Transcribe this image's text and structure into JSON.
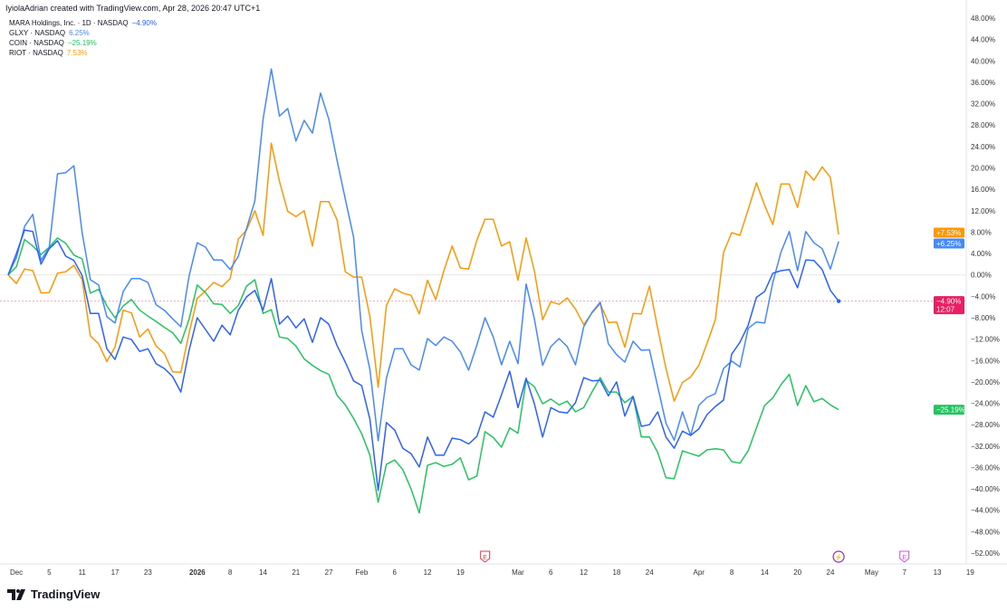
{
  "header": {
    "credit": "IyiolaAdrian created with TradingView.com, Apr 28, 2026 20:47 UTC+1"
  },
  "legend": [
    {
      "label": "MARA Holdings, Inc. · 1D · NASDAQ",
      "value": "−4.90%",
      "color": "#2962ff"
    },
    {
      "label": "GLXY · NASDAQ",
      "value": "6.25%",
      "color": "#448aff"
    },
    {
      "label": "COIN · NASDAQ",
      "value": "−25.19%",
      "color": "#22c55e"
    },
    {
      "label": "RIOT · NASDAQ",
      "value": "7.53%",
      "color": "#ff9800"
    }
  ],
  "price_badges": [
    {
      "series": "RIOT",
      "text": "+7.53%",
      "color": "#ff9800"
    },
    {
      "series": "GLXY",
      "text": "+6.25%",
      "color": "#448aff"
    },
    {
      "series": "MARA",
      "text": "−4.90%",
      "subtext": "12:07",
      "color": "#e91e63"
    },
    {
      "series": "COIN",
      "text": "−25.19%",
      "color": "#22c55e"
    }
  ],
  "events": [
    {
      "date": "2026-02-24",
      "icon": "earnings-icon",
      "label": "E",
      "color": "#f23645"
    },
    {
      "date": "2026-04-27",
      "icon": "lightning-icon",
      "label": "⚡",
      "color": "#9c27b0"
    },
    {
      "date": "2026-05-07",
      "icon": "earnings-icon",
      "label": "E",
      "color": "#e040fb"
    }
  ],
  "branding": {
    "logo_text": "TradingView"
  },
  "chart_data": {
    "type": "line",
    "title": "",
    "xlabel": "",
    "ylabel": "",
    "ylim": [
      -52,
      48
    ],
    "y_ticks": [
      "48.00%",
      "44.00%",
      "40.00%",
      "36.00%",
      "32.00%",
      "28.00%",
      "24.00%",
      "20.00%",
      "16.00%",
      "12.00%",
      "8.00%",
      "4.00%",
      "0.00%",
      "−4.00%",
      "−8.00%",
      "−12.00%",
      "−16.00%",
      "−20.00%",
      "−24.00%",
      "−28.00%",
      "−32.00%",
      "−36.00%",
      "−40.00%",
      "−44.00%",
      "−48.00%",
      "−52.00%"
    ],
    "y_tick_values": [
      48,
      44,
      40,
      36,
      32,
      28,
      24,
      20,
      16,
      12,
      8,
      4,
      0,
      -4,
      -8,
      -12,
      -16,
      -20,
      -24,
      -28,
      -32,
      -36,
      -40,
      -44,
      -48,
      -52
    ],
    "x_ticks": [
      {
        "date": "2025-12-01",
        "label": "Dec"
      },
      {
        "date": "2025-12-05",
        "label": "5"
      },
      {
        "date": "2025-12-11",
        "label": "11"
      },
      {
        "date": "2025-12-17",
        "label": "17"
      },
      {
        "date": "2025-12-23",
        "label": "23"
      },
      {
        "date": "2026-01-02",
        "label": "2026",
        "bold": true
      },
      {
        "date": "2026-01-08",
        "label": "8"
      },
      {
        "date": "2026-01-14",
        "label": "14"
      },
      {
        "date": "2026-01-21",
        "label": "21"
      },
      {
        "date": "2026-01-27",
        "label": "27"
      },
      {
        "date": "2026-02-02",
        "label": "Feb"
      },
      {
        "date": "2026-02-06",
        "label": "6"
      },
      {
        "date": "2026-02-12",
        "label": "12"
      },
      {
        "date": "2026-02-19",
        "label": "19"
      },
      {
        "date": "2026-03-02",
        "label": "Mar"
      },
      {
        "date": "2026-03-06",
        "label": "6"
      },
      {
        "date": "2026-03-12",
        "label": "12"
      },
      {
        "date": "2026-03-18",
        "label": "18"
      },
      {
        "date": "2026-03-24",
        "label": "24"
      },
      {
        "date": "2026-04-01",
        "label": "Apr"
      },
      {
        "date": "2026-04-08",
        "label": "8"
      },
      {
        "date": "2026-04-14",
        "label": "14"
      },
      {
        "date": "2026-04-20",
        "label": "20"
      },
      {
        "date": "2026-04-24",
        "label": "24"
      },
      {
        "date": "2026-05-01",
        "label": "May"
      },
      {
        "date": "2026-05-07",
        "label": "7"
      },
      {
        "date": "2026-05-13",
        "label": "13"
      },
      {
        "date": "2026-05-19",
        "label": "19"
      }
    ],
    "y_unit": "%",
    "grid": false,
    "legend_position": "top-left",
    "x": [
      "2025-11-28",
      "2025-12-01",
      "2025-12-02",
      "2025-12-03",
      "2025-12-04",
      "2025-12-05",
      "2025-12-08",
      "2025-12-09",
      "2025-12-10",
      "2025-12-11",
      "2025-12-12",
      "2025-12-15",
      "2025-12-16",
      "2025-12-17",
      "2025-12-18",
      "2025-12-19",
      "2025-12-22",
      "2025-12-23",
      "2025-12-24",
      "2025-12-26",
      "2025-12-29",
      "2025-12-30",
      "2025-12-31",
      "2026-01-02",
      "2026-01-05",
      "2026-01-06",
      "2026-01-07",
      "2026-01-08",
      "2026-01-09",
      "2026-01-12",
      "2026-01-13",
      "2026-01-14",
      "2026-01-15",
      "2026-01-16",
      "2026-01-20",
      "2026-01-21",
      "2026-01-22",
      "2026-01-23",
      "2026-01-26",
      "2026-01-27",
      "2026-01-28",
      "2026-01-29",
      "2026-01-30",
      "2026-02-02",
      "2026-02-03",
      "2026-02-04",
      "2026-02-05",
      "2026-02-06",
      "2026-02-09",
      "2026-02-10",
      "2026-02-11",
      "2026-02-12",
      "2026-02-13",
      "2026-02-17",
      "2026-02-18",
      "2026-02-19",
      "2026-02-20",
      "2026-02-23",
      "2026-02-24",
      "2026-02-25",
      "2026-02-26",
      "2026-02-27",
      "2026-03-02",
      "2026-03-03",
      "2026-03-04",
      "2026-03-05",
      "2026-03-06",
      "2026-03-09",
      "2026-03-10",
      "2026-03-11",
      "2026-03-12",
      "2026-03-13",
      "2026-03-16",
      "2026-03-17",
      "2026-03-18",
      "2026-03-19",
      "2026-03-20",
      "2026-03-23",
      "2026-03-24",
      "2026-03-25",
      "2026-03-26",
      "2026-03-27",
      "2026-03-30",
      "2026-03-31",
      "2026-04-01",
      "2026-04-02",
      "2026-04-06",
      "2026-04-07",
      "2026-04-08",
      "2026-04-09",
      "2026-04-10",
      "2026-04-13",
      "2026-04-14",
      "2026-04-15",
      "2026-04-16",
      "2026-04-17",
      "2026-04-20",
      "2026-04-21",
      "2026-04-22",
      "2026-04-23",
      "2026-04-24",
      "2026-04-27"
    ],
    "series": [
      {
        "name": "MARA Holdings, Inc. · 1D · NASDAQ",
        "color": "#2962ff",
        "last_dot": true,
        "values": [
          0,
          4.0,
          8.4,
          8.1,
          2.0,
          4.9,
          6.4,
          3.5,
          2.7,
          -0.1,
          -7.2,
          -7.2,
          -13.8,
          -15.8,
          -11.6,
          -12.1,
          -14.3,
          -13.8,
          -16.6,
          -17.5,
          -19.0,
          -21.9,
          -14.1,
          -8.0,
          -10.2,
          -12.4,
          -9.4,
          -11.2,
          -6.6,
          -4.1,
          -2.9,
          -6.6,
          -0.7,
          -9.2,
          -7.7,
          -9.9,
          -8.2,
          -12.6,
          -8.0,
          -9.2,
          -13.2,
          -16.3,
          -19.8,
          -20.7,
          -27.0,
          -40.3,
          -27.6,
          -29.0,
          -32.4,
          -33.4,
          -35.9,
          -30.3,
          -33.7,
          -33.7,
          -30.5,
          -30.8,
          -31.6,
          -30.2,
          -25.6,
          -26.6,
          -22.4,
          -18.0,
          -24.8,
          -19.3,
          -24.1,
          -30.3,
          -24.8,
          -25.6,
          -25.8,
          -23.9,
          -19.2,
          -19.8,
          -19.7,
          -22.6,
          -20.0,
          -26.4,
          -22.7,
          -28.3,
          -28.0,
          -25.6,
          -30.3,
          -32.4,
          -29.2,
          -30.0,
          -28.8,
          -26.1,
          -24.6,
          -23.4,
          -14.8,
          -12.6,
          -9.4,
          -4.2,
          -3.1,
          0.3,
          0.8,
          1.0,
          -2.4,
          2.8,
          2.7,
          1.0,
          -2.9,
          -4.9
        ]
      },
      {
        "name": "GLXY · NASDAQ",
        "color": "#448aff",
        "values": [
          0,
          3.2,
          9.1,
          11.3,
          2.7,
          5.2,
          18.9,
          19.1,
          20.4,
          7.9,
          -0.9,
          -1.9,
          -7.8,
          -9.0,
          -3.1,
          -0.7,
          -0.7,
          -1.4,
          -5.6,
          -6.6,
          -8.2,
          -9.7,
          -0.2,
          6.0,
          5.2,
          2.8,
          2.8,
          1.0,
          3.5,
          8.7,
          13.8,
          29.1,
          38.5,
          29.7,
          31.1,
          25.0,
          28.9,
          26.5,
          34.0,
          29.1,
          21.4,
          14.2,
          7.1,
          -10.4,
          -17.7,
          -31.0,
          -19.3,
          -13.8,
          -13.8,
          -16.8,
          -17.8,
          -11.9,
          -13.2,
          -11.6,
          -12.4,
          -14.4,
          -17.8,
          -13.1,
          -8.0,
          -11.6,
          -16.8,
          -12.4,
          -16.6,
          -1.7,
          -8.2,
          -16.9,
          -13.4,
          -11.9,
          -13.4,
          -16.8,
          -9.7,
          -7.0,
          -5.1,
          -12.9,
          -14.9,
          -16.3,
          -12.4,
          -14.1,
          -14.0,
          -20.9,
          -27.7,
          -30.9,
          -25.6,
          -30.0,
          -24.4,
          -22.9,
          -22.2,
          -17.5,
          -16.1,
          -17.2,
          -10.0,
          -8.8,
          -9.0,
          -1.4,
          4.3,
          8.1,
          0.8,
          8.1,
          6.0,
          4.9,
          1.1,
          6.25
        ]
      },
      {
        "name": "COIN · NASDAQ",
        "color": "#22c55e",
        "values": [
          0,
          1.5,
          6.6,
          5.4,
          3.8,
          5.2,
          6.9,
          5.9,
          3.7,
          3.0,
          -3.4,
          -2.7,
          -5.8,
          -8.0,
          -5.8,
          -4.6,
          -6.6,
          -7.7,
          -8.7,
          -9.8,
          -10.8,
          -12.8,
          -8.3,
          -1.9,
          -3.3,
          -5.4,
          -5.5,
          -7.2,
          -5.7,
          -2.1,
          -0.9,
          -7.2,
          -6.5,
          -11.6,
          -11.9,
          -13.3,
          -15.7,
          -16.9,
          -17.9,
          -18.6,
          -22.5,
          -24.3,
          -26.8,
          -29.7,
          -33.7,
          -42.5,
          -35.4,
          -34.6,
          -36.4,
          -40.0,
          -44.5,
          -35.6,
          -35.1,
          -35.8,
          -35.4,
          -34.2,
          -38.3,
          -37.6,
          -29.3,
          -30.4,
          -32.2,
          -28.6,
          -29.6,
          -19.7,
          -20.9,
          -24.1,
          -23.2,
          -24.3,
          -23.6,
          -25.6,
          -24.8,
          -21.9,
          -19.2,
          -21.9,
          -21.9,
          -23.9,
          -22.7,
          -30.3,
          -30.3,
          -33.2,
          -37.9,
          -38.1,
          -32.9,
          -33.4,
          -33.9,
          -32.7,
          -32.5,
          -32.7,
          -34.9,
          -35.2,
          -32.9,
          -28.6,
          -24.4,
          -23.0,
          -20.5,
          -18.6,
          -24.4,
          -20.7,
          -23.7,
          -23.1,
          -24.3,
          -25.19
        ]
      },
      {
        "name": "RIOT · NASDAQ",
        "color": "#ff9800",
        "values": [
          0,
          -1.6,
          1.1,
          0.8,
          -3.4,
          -3.3,
          0.3,
          0.6,
          1.8,
          -0.9,
          -11.4,
          -12.9,
          -16.2,
          -13.5,
          -6.6,
          -7.1,
          -11.6,
          -10.1,
          -13.3,
          -14.7,
          -18.1,
          -18.2,
          -10.9,
          -4.4,
          -3.0,
          -1.4,
          -2.2,
          -0.7,
          6.7,
          8.4,
          12.0,
          7.4,
          24.6,
          17.5,
          11.9,
          10.9,
          12.0,
          5.4,
          13.7,
          13.7,
          10.3,
          0.6,
          -0.4,
          -0.4,
          -7.8,
          -21.0,
          -5.7,
          -2.6,
          -3.4,
          -3.8,
          -7.3,
          -1.0,
          -4.6,
          0.8,
          5.4,
          1.3,
          1.1,
          6.5,
          10.4,
          10.4,
          5.4,
          6.2,
          -1.0,
          6.9,
          0.8,
          -8.4,
          -5.0,
          -5.5,
          -4.3,
          -6.4,
          -9.3,
          -7.1,
          -5.4,
          -8.9,
          -8.8,
          -13.5,
          -7.2,
          -7.3,
          -2.1,
          -10.0,
          -17.5,
          -23.6,
          -20.1,
          -19.1,
          -16.9,
          -12.8,
          -8.4,
          4.2,
          7.9,
          7.4,
          12.2,
          17.2,
          13.0,
          9.4,
          17.0,
          17.0,
          12.6,
          19.4,
          17.7,
          20.2,
          18.2,
          7.53
        ]
      }
    ]
  }
}
